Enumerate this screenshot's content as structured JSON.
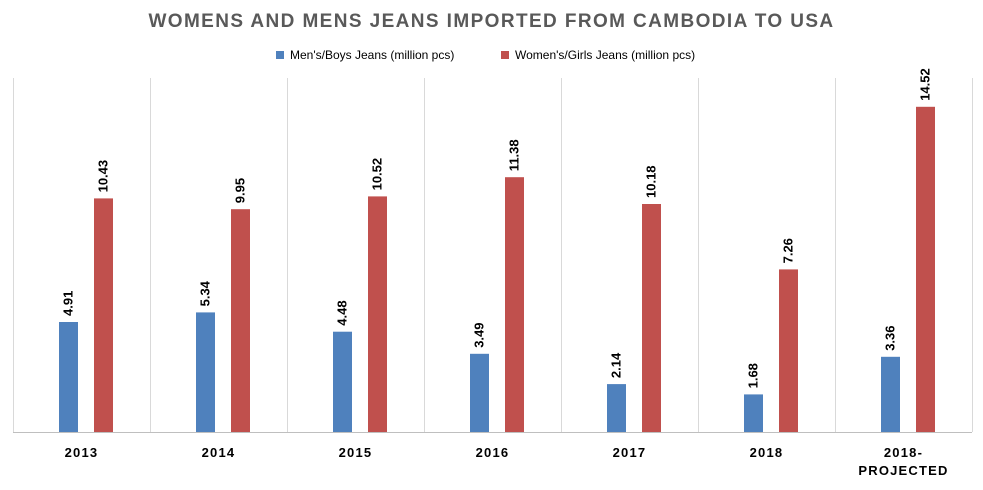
{
  "chart_data": {
    "type": "bar",
    "title": "WOMENS AND MENS JEANS IMPORTED FROM CAMBODIA TO USA",
    "categories": [
      "2013",
      "2014",
      "2015",
      "2016",
      "2017",
      "2018",
      "2018-PROJECTED"
    ],
    "series": [
      {
        "name": "Men's/Boys Jeans (million pcs)",
        "color": "#4F81BD",
        "values": [
          4.91,
          5.34,
          4.48,
          3.49,
          2.14,
          1.68,
          3.36
        ]
      },
      {
        "name": "Women's/Girls  Jeans (million pcs)",
        "color": "#C0504D",
        "values": [
          10.43,
          9.95,
          10.52,
          11.38,
          10.18,
          7.26,
          14.52
        ]
      }
    ],
    "ylim": [
      0,
      16
    ],
    "grid": "vertical category separators",
    "legend": "top-center",
    "data_labels": "rotated above bars"
  }
}
